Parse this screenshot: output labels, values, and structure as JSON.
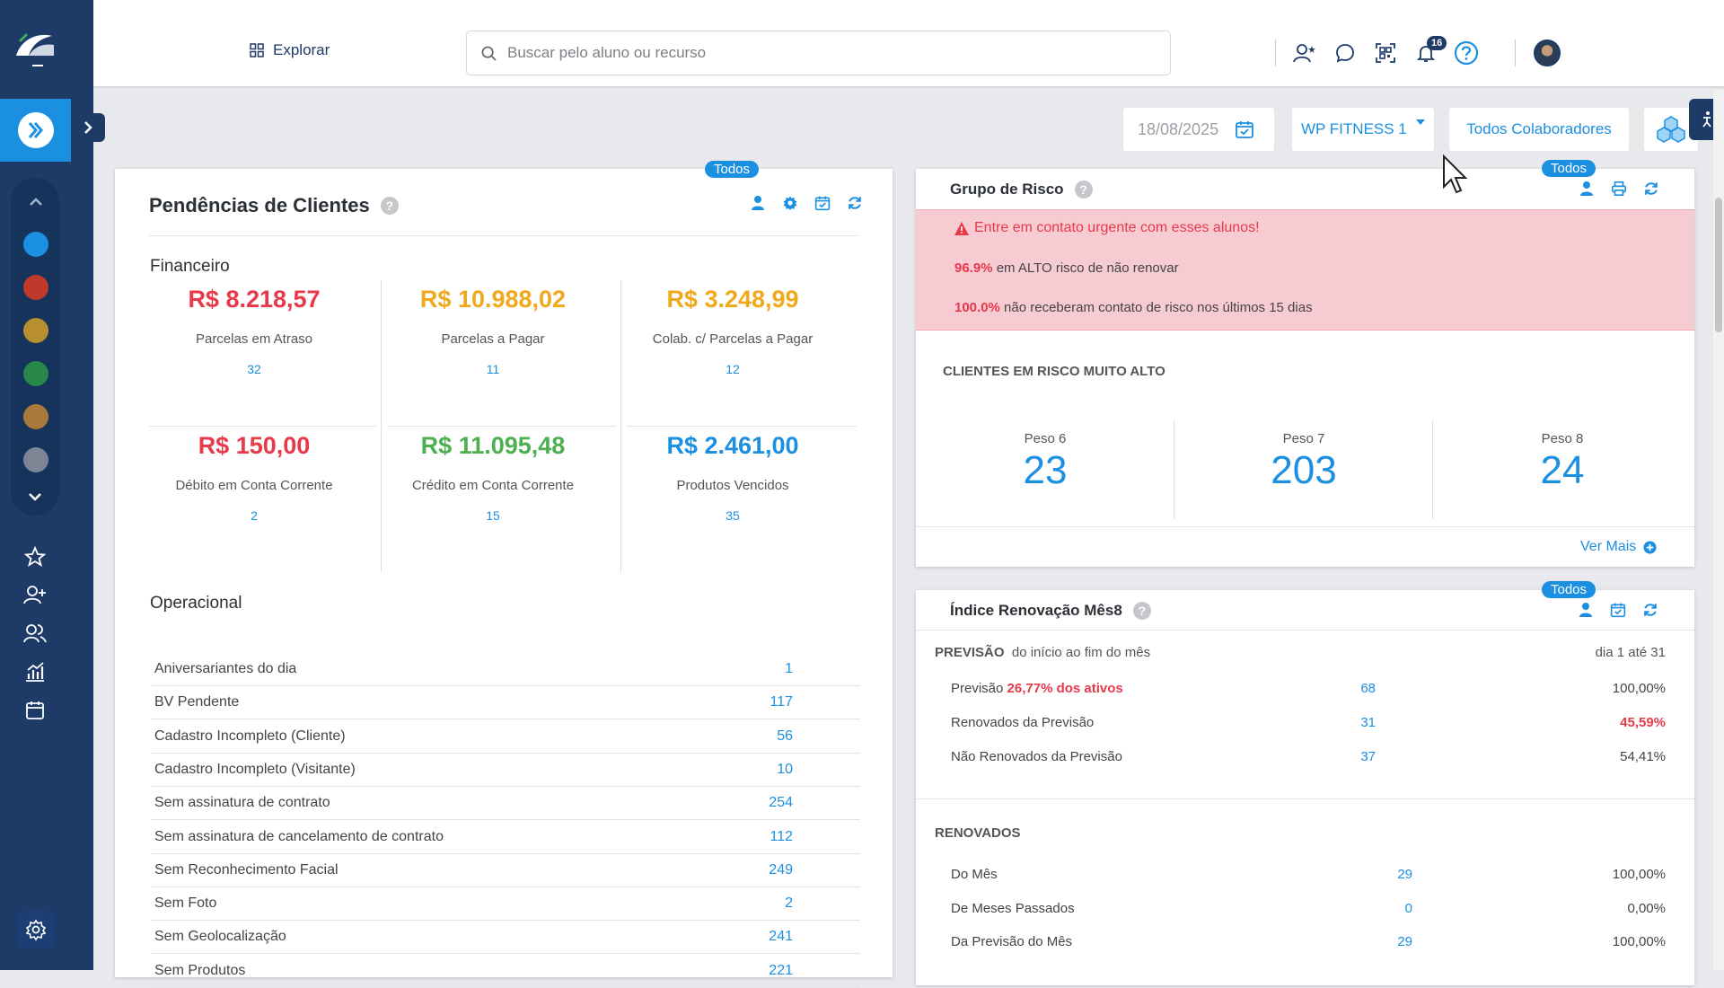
{
  "colors": {
    "sidebar": "#1e3a66",
    "accent": "#1b8fe0",
    "red": "#e8394a",
    "orange": "#f0a81c",
    "green": "#4caf50",
    "alert_bg": "#f6ccd2"
  },
  "sidebar": {
    "logo_icon": "pacto-logo-icon",
    "active_icon": "unit-logo-icon",
    "nav_icons": [
      "star-icon",
      "add-user-icon",
      "users-icon",
      "chart-icon",
      "calendar-icon"
    ],
    "unit_colors": [
      "#1b8fe0",
      "#c0392b",
      "#b8912e",
      "#27884a",
      "#a9793a",
      "#7b8593"
    ],
    "settings_icon": "gear-icon"
  },
  "topbar": {
    "explorar_label": "Explorar",
    "search_placeholder": "Buscar pelo aluno ou recurso",
    "notification_count": "16"
  },
  "filters": {
    "date": "18/08/2025",
    "unit": "WP FITNESS 1",
    "collaborators": "Todos Colaboradores"
  },
  "pendencias": {
    "todos_label": "Todos",
    "title": "Pendências de Clientes",
    "help_label": "?",
    "financeiro_label": "Financeiro",
    "financeiro": [
      {
        "value": "R$ 8.218,57",
        "label": "Parcelas em Atraso",
        "count": "32",
        "color": "#e8394a"
      },
      {
        "value": "R$ 10.988,02",
        "label": "Parcelas a Pagar",
        "count": "11",
        "color": "#f0a81c"
      },
      {
        "value": "R$ 3.248,99",
        "label": "Colab. c/ Parcelas a Pagar",
        "count": "12",
        "color": "#f0a81c"
      },
      {
        "value": "R$ 150,00",
        "label": "Débito em Conta Corrente",
        "count": "2",
        "color": "#e8394a"
      },
      {
        "value": "R$ 11.095,48",
        "label": "Crédito em Conta Corrente",
        "count": "15",
        "color": "#4caf50"
      },
      {
        "value": "R$ 2.461,00",
        "label": "Produtos Vencidos",
        "count": "35",
        "color": "#1b8fe0"
      }
    ],
    "operacional_label": "Operacional",
    "operacional": [
      {
        "label": "Aniversariantes do dia",
        "count": "1"
      },
      {
        "label": "BV Pendente",
        "count": "117"
      },
      {
        "label": "Cadastro Incompleto (Cliente)",
        "count": "56"
      },
      {
        "label": "Cadastro Incompleto (Visitante)",
        "count": "10"
      },
      {
        "label": "Sem assinatura de contrato",
        "count": "254"
      },
      {
        "label": "Sem assinatura de cancelamento de contrato",
        "count": "112"
      },
      {
        "label": "Sem Reconhecimento Facial",
        "count": "249"
      },
      {
        "label": "Sem Foto",
        "count": "2"
      },
      {
        "label": "Sem Geolocalização",
        "count": "241"
      },
      {
        "label": "Sem Produtos",
        "count": "221"
      }
    ]
  },
  "risco": {
    "todos_label": "Todos",
    "title": "Grupo de Risco",
    "help_label": "?",
    "alert_title": "Entre em contato urgente com esses alunos!",
    "alert_line1_pct": "96.9%",
    "alert_line1_text": "em ALTO risco de não renovar",
    "alert_line2_pct": "100.0%",
    "alert_line2_text": "não receberam contato de risco nos últimos 15 dias",
    "section_title": "CLIENTES EM RISCO MUITO ALTO",
    "pesos": [
      {
        "label": "Peso 6",
        "value": "23"
      },
      {
        "label": "Peso 7",
        "value": "203"
      },
      {
        "label": "Peso 8",
        "value": "24"
      }
    ],
    "ver_mais": "Ver Mais"
  },
  "renovacao": {
    "todos_label": "Todos",
    "title": "Índice Renovação Mês8",
    "help_label": "?",
    "previsao_label": "PREVISÃO",
    "previsao_sub": "do início ao fim do mês",
    "range": "dia 1 até 31",
    "previsao_rows": [
      {
        "label": "Previsão",
        "highlight": "26,77% dos ativos",
        "count": "68",
        "pct": "100,00%",
        "pct_red": false
      },
      {
        "label": "Renovados da Previsão",
        "highlight": "",
        "count": "31",
        "pct": "45,59%",
        "pct_red": true
      },
      {
        "label": "Não Renovados da Previsão",
        "highlight": "",
        "count": "37",
        "pct": "54,41%",
        "pct_red": false
      }
    ],
    "renovados_label": "RENOVADOS",
    "renovados_rows": [
      {
        "label": "Do Mês",
        "count": "29",
        "pct": "100,00%"
      },
      {
        "label": "De Meses Passados",
        "count": "0",
        "pct": "0,00%"
      },
      {
        "label": "Da Previsão do Mês",
        "count": "29",
        "pct": "100,00%"
      }
    ]
  }
}
